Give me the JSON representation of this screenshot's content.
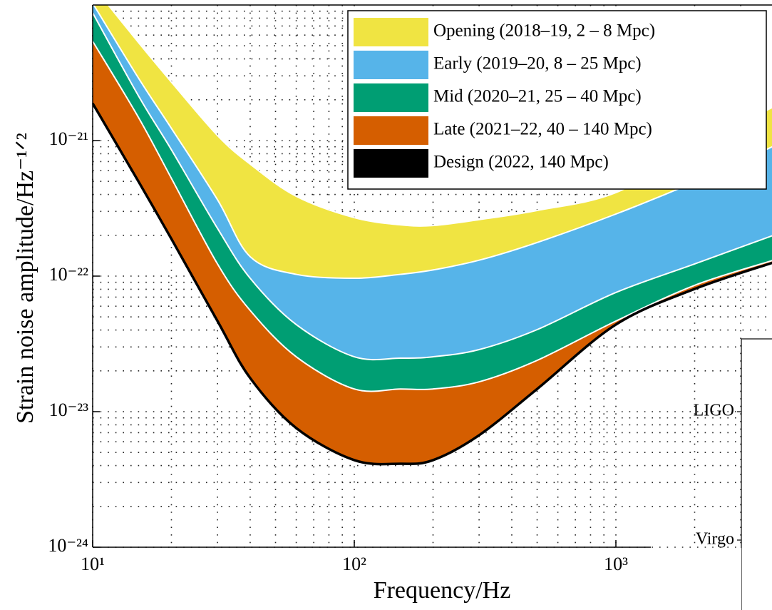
{
  "chart_data": {
    "type": "band",
    "x_label": "Frequency/Hz",
    "y_label": "Strain noise amplitude/Hz⁻¹ᐟ²",
    "log_x": true,
    "log_y": true,
    "grid": true,
    "legend": "upper right",
    "x": [
      10,
      15,
      20,
      30,
      40,
      60,
      100,
      150,
      200,
      300,
      500,
      1000,
      2000,
      4000
    ],
    "xlim": [
      10,
      4000
    ],
    "ylim": [
      1e-24,
      1e-20
    ],
    "xticks": [
      {
        "value": 10,
        "label": "10¹"
      },
      {
        "value": 100,
        "label": "10²"
      },
      {
        "value": 1000,
        "label": "10³"
      }
    ],
    "yticks": [
      {
        "value": 1e-24,
        "label": "10⁻²⁴"
      },
      {
        "value": 1e-23,
        "label": "10⁻²³"
      },
      {
        "value": 1e-22,
        "label": "10⁻²²"
      },
      {
        "value": 1e-21,
        "label": "10⁻²¹"
      }
    ],
    "xminorticks": [
      20,
      30,
      40,
      50,
      60,
      70,
      80,
      90,
      200,
      300,
      400,
      500,
      600,
      700,
      800,
      900,
      2000,
      3000
    ],
    "yminorticks": [
      2e-24,
      3e-24,
      4e-24,
      5e-24,
      6e-24,
      7e-24,
      8e-24,
      9e-24,
      2e-23,
      3e-23,
      4e-23,
      5e-23,
      6e-23,
      7e-23,
      8e-23,
      9e-23,
      2e-22,
      3e-22,
      4e-22,
      5e-22,
      6e-22,
      7e-22,
      8e-22,
      9e-22,
      2e-21,
      3e-21,
      4e-21,
      5e-21,
      6e-21,
      7e-21,
      8e-21,
      9e-21
    ],
    "series": [
      {
        "name": "Opening (2018–19, 2 – 8 Mpc)",
        "color": "#f0e442",
        "values": [
          1.39e-20,
          5.26e-21,
          2.7e-21,
          1.09e-21,
          6.7e-22,
          3.88e-22,
          2.7e-22,
          2.39e-22,
          2.36e-22,
          2.61e-22,
          3.05e-22,
          4.13e-22,
          9.08e-22,
          1.77e-21
        ]
      },
      {
        "name": "Early (2019–20, 8 – 25 Mpc)",
        "color": "#56b4e9",
        "values": [
          1.03e-20,
          2.87e-21,
          1.23e-21,
          3.66e-22,
          1.39e-22,
          1.03e-22,
          9.64e-23,
          1.03e-22,
          1.11e-22,
          1.31e-22,
          1.77e-22,
          2.87e-22,
          4.95e-22,
          9.08e-22
        ]
      },
      {
        "name": "Mid (2020–21, 25 – 40 Mpc)",
        "color": "#009e73",
        "values": [
          8.75e-21,
          2.12e-21,
          8.55e-22,
          2.25e-22,
          9.64e-23,
          4.39e-23,
          2.54e-23,
          2.48e-23,
          2.54e-23,
          2.87e-23,
          4.03e-23,
          7.57e-23,
          1.23e-22,
          2e-22
        ]
      },
      {
        "name": "Late (2021–22, 40 – 140 Mpc)",
        "color": "#d55e00",
        "values": [
          5.4e-21,
          1.47e-21,
          5.26e-22,
          1.23e-22,
          5.58e-23,
          2.54e-23,
          1.47e-23,
          1.47e-23,
          1.47e-23,
          1.66e-23,
          2.39e-23,
          4.66e-23,
          8.55e-23,
          1.31e-22
        ]
      },
      {
        "name": "Design (2022, 140 Mpc)",
        "color": "#000000",
        "values": [
          1.88e-21,
          4.95e-22,
          1.88e-22,
          4.66e-23,
          1.77e-23,
          7.57e-24,
          4.39e-24,
          4.13e-24,
          4.39e-24,
          6.7e-24,
          1.47e-23,
          4.39e-23,
          8.04e-23,
          1.26e-22
        ]
      }
    ]
  },
  "side_panel": {
    "labels": [
      "LIGO",
      "Virgo"
    ]
  }
}
